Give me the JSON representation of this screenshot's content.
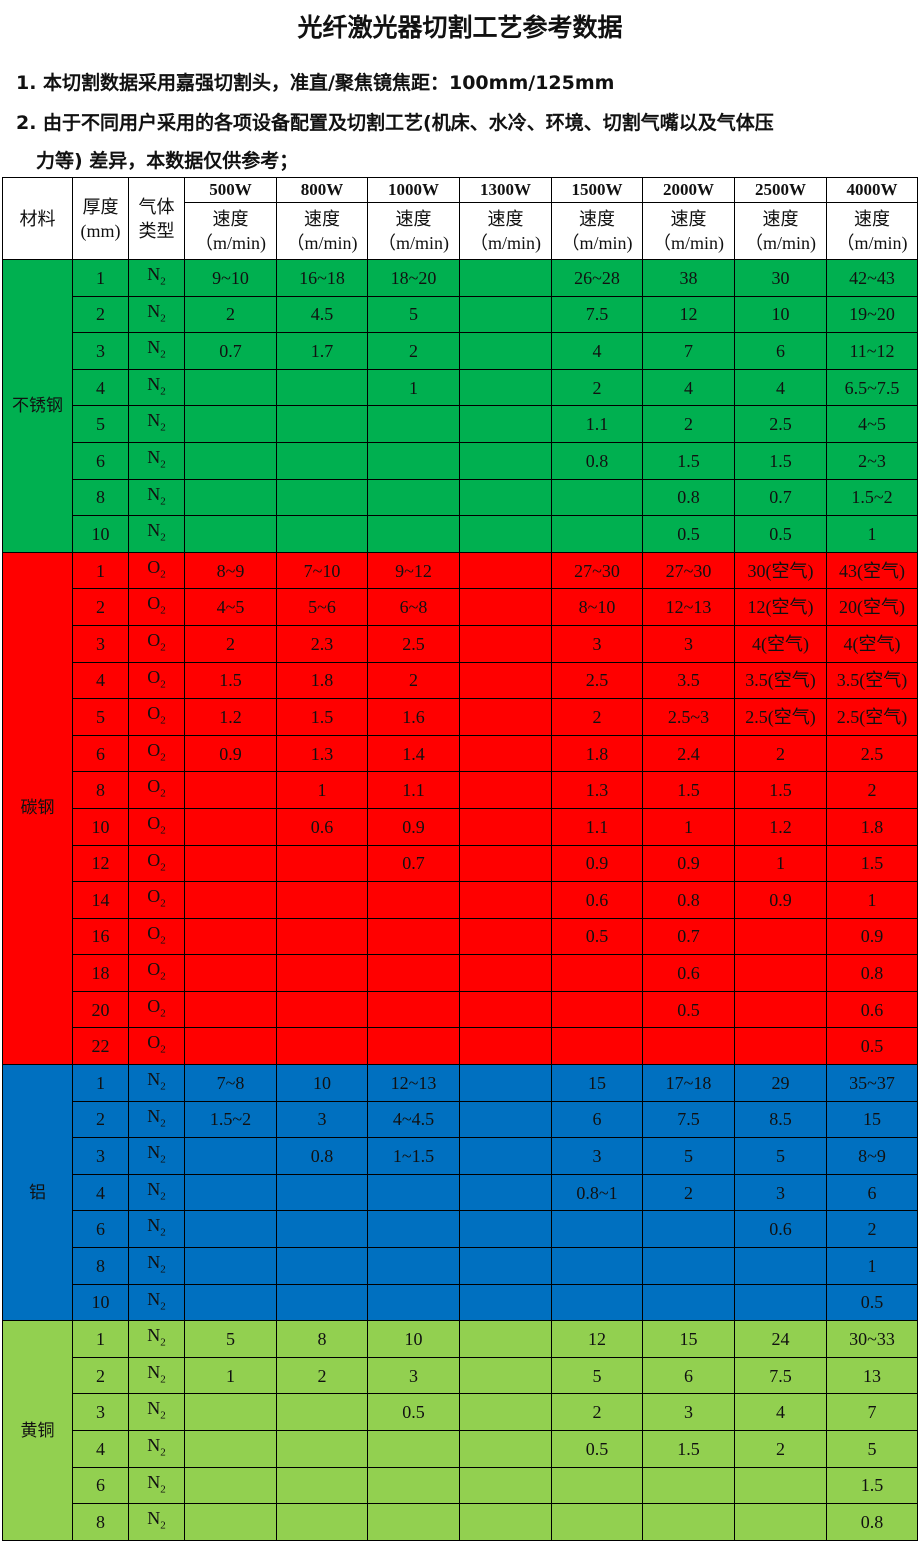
{
  "title": "光纤激光器切割工艺参考数据",
  "notes": [
    "1. 本切割数据采用嘉强切割头，准直/聚焦镜焦距：100mm/125mm",
    "2. 由于不同用户采用的各项设备配置及切割工艺(机床、水冷、环境、切割气嘴以及气体压",
    "力等) 差异，本数据仅供参考；"
  ],
  "table": {
    "headers": {
      "material": "材料",
      "thickness": "厚度\n(mm)",
      "gas": "气体\n类型",
      "speed": "速度\n（m/min)"
    },
    "powers": [
      "500W",
      "800W",
      "1000W",
      "1300W",
      "1500W",
      "2000W",
      "2500W",
      "4000W"
    ],
    "groups": [
      {
        "material": "不锈钢",
        "color": "#00b050",
        "cls": "green",
        "rows": [
          {
            "t": "1",
            "gas": "N2",
            "v": [
              "9~10",
              "16~18",
              "18~20",
              "",
              "26~28",
              "38",
              "30",
              "42~43"
            ]
          },
          {
            "t": "2",
            "gas": "N2",
            "v": [
              "2",
              "4.5",
              "5",
              "",
              "7.5",
              "12",
              "10",
              "19~20"
            ]
          },
          {
            "t": "3",
            "gas": "N2",
            "v": [
              "0.7",
              "1.7",
              "2",
              "",
              "4",
              "7",
              "6",
              "11~12"
            ]
          },
          {
            "t": "4",
            "gas": "N2",
            "v": [
              "",
              "",
              "1",
              "",
              "2",
              "4",
              "4",
              "6.5~7.5"
            ]
          },
          {
            "t": "5",
            "gas": "N2",
            "v": [
              "",
              "",
              "",
              "",
              "1.1",
              "2",
              "2.5",
              "4~5"
            ]
          },
          {
            "t": "6",
            "gas": "N2",
            "v": [
              "",
              "",
              "",
              "",
              "0.8",
              "1.5",
              "1.5",
              "2~3"
            ]
          },
          {
            "t": "8",
            "gas": "N2",
            "v": [
              "",
              "",
              "",
              "",
              "",
              "0.8",
              "0.7",
              "1.5~2"
            ]
          },
          {
            "t": "10",
            "gas": "N2",
            "v": [
              "",
              "",
              "",
              "",
              "",
              "0.5",
              "0.5",
              "1"
            ]
          }
        ]
      },
      {
        "material": "碳钢",
        "color": "#ff0000",
        "cls": "red",
        "rows": [
          {
            "t": "1",
            "gas": "O2",
            "v": [
              "8~9",
              "7~10",
              "9~12",
              "",
              "27~30",
              "27~30",
              "30(空气)",
              "43(空气)"
            ]
          },
          {
            "t": "2",
            "gas": "O2",
            "v": [
              "4~5",
              "5~6",
              "6~8",
              "",
              "8~10",
              "12~13",
              "12(空气)",
              "20(空气)"
            ]
          },
          {
            "t": "3",
            "gas": "O2",
            "v": [
              "2",
              "2.3",
              "2.5",
              "",
              "3",
              "3",
              "4(空气)",
              "4(空气)"
            ]
          },
          {
            "t": "4",
            "gas": "O2",
            "v": [
              "1.5",
              "1.8",
              "2",
              "",
              "2.5",
              "3.5",
              "3.5(空气)",
              "3.5(空气)"
            ]
          },
          {
            "t": "5",
            "gas": "O2",
            "v": [
              "1.2",
              "1.5",
              "1.6",
              "",
              "2",
              "2.5~3",
              "2.5(空气)",
              "2.5(空气)"
            ]
          },
          {
            "t": "6",
            "gas": "O2",
            "v": [
              "0.9",
              "1.3",
              "1.4",
              "",
              "1.8",
              "2.4",
              "2",
              "2.5"
            ]
          },
          {
            "t": "8",
            "gas": "O2",
            "v": [
              "",
              "1",
              "1.1",
              "",
              "1.3",
              "1.5",
              "1.5",
              "2"
            ]
          },
          {
            "t": "10",
            "gas": "O2",
            "v": [
              "",
              "0.6",
              "0.9",
              "",
              "1.1",
              "1",
              "1.2",
              "1.8"
            ]
          },
          {
            "t": "12",
            "gas": "O2",
            "v": [
              "",
              "",
              "0.7",
              "",
              "0.9",
              "0.9",
              "1",
              "1.5"
            ]
          },
          {
            "t": "14",
            "gas": "O2",
            "v": [
              "",
              "",
              "",
              "",
              "0.6",
              "0.8",
              "0.9",
              "1"
            ]
          },
          {
            "t": "16",
            "gas": "O2",
            "v": [
              "",
              "",
              "",
              "",
              "0.5",
              "0.7",
              "",
              "0.9"
            ]
          },
          {
            "t": "18",
            "gas": "O2",
            "v": [
              "",
              "",
              "",
              "",
              "",
              "0.6",
              "",
              "0.8"
            ]
          },
          {
            "t": "20",
            "gas": "O2",
            "v": [
              "",
              "",
              "",
              "",
              "",
              "0.5",
              "",
              "0.6"
            ]
          },
          {
            "t": "22",
            "gas": "O2",
            "v": [
              "",
              "",
              "",
              "",
              "",
              "",
              "",
              "0.5"
            ]
          }
        ]
      },
      {
        "material": "铝",
        "color": "#0070c0",
        "cls": "blue",
        "rows": [
          {
            "t": "1",
            "gas": "N2",
            "v": [
              "7~8",
              "10",
              "12~13",
              "",
              "15",
              "17~18",
              "29",
              "35~37"
            ]
          },
          {
            "t": "2",
            "gas": "N2",
            "v": [
              "1.5~2",
              "3",
              "4~4.5",
              "",
              "6",
              "7.5",
              "8.5",
              "15"
            ]
          },
          {
            "t": "3",
            "gas": "N2",
            "v": [
              "",
              "0.8",
              "1~1.5",
              "",
              "3",
              "5",
              "5",
              "8~9"
            ]
          },
          {
            "t": "4",
            "gas": "N2",
            "v": [
              "",
              "",
              "",
              "",
              "0.8~1",
              "2",
              "3",
              "6"
            ]
          },
          {
            "t": "6",
            "gas": "N2",
            "v": [
              "",
              "",
              "",
              "",
              "",
              "",
              "0.6",
              "2"
            ]
          },
          {
            "t": "8",
            "gas": "N2",
            "v": [
              "",
              "",
              "",
              "",
              "",
              "",
              "",
              "1"
            ]
          },
          {
            "t": "10",
            "gas": "N2",
            "v": [
              "",
              "",
              "",
              "",
              "",
              "",
              "",
              "0.5"
            ]
          }
        ]
      },
      {
        "material": "黄铜",
        "color": "#92d050",
        "cls": "lime",
        "rows": [
          {
            "t": "1",
            "gas": "N2",
            "v": [
              "5",
              "8",
              "10",
              "",
              "12",
              "15",
              "24",
              "30~33"
            ]
          },
          {
            "t": "2",
            "gas": "N2",
            "v": [
              "1",
              "2",
              "3",
              "",
              "5",
              "6",
              "7.5",
              "13"
            ]
          },
          {
            "t": "3",
            "gas": "N2",
            "v": [
              "",
              "",
              "0.5",
              "",
              "2",
              "3",
              "4",
              "7"
            ]
          },
          {
            "t": "4",
            "gas": "N2",
            "v": [
              "",
              "",
              "",
              "",
              "0.5",
              "1.5",
              "2",
              "5"
            ]
          },
          {
            "t": "6",
            "gas": "N2",
            "v": [
              "",
              "",
              "",
              "",
              "",
              "",
              "",
              "1.5"
            ]
          },
          {
            "t": "8",
            "gas": "N2",
            "v": [
              "",
              "",
              "",
              "",
              "",
              "",
              "",
              "0.8"
            ]
          }
        ]
      }
    ]
  }
}
